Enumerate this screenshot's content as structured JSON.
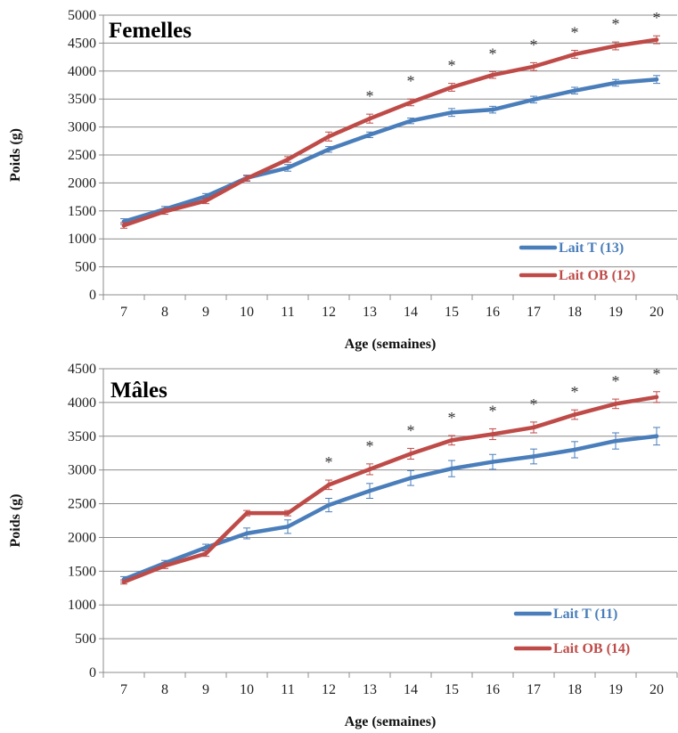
{
  "chart_data": [
    {
      "type": "line",
      "title": "Femelles",
      "xlabel": "Age (semaines)",
      "ylabel": "Poids (g)",
      "x": [
        7,
        8,
        9,
        10,
        11,
        12,
        13,
        14,
        15,
        16,
        17,
        18,
        19,
        20
      ],
      "ylim": [
        0,
        5000
      ],
      "yticks": [
        0,
        500,
        1000,
        1500,
        2000,
        2500,
        3000,
        3500,
        4000,
        4500,
        5000
      ],
      "grid": true,
      "legend": "bottom-right",
      "series": [
        {
          "name": "Lait T (13)",
          "color": "#4A7EBB",
          "values": [
            1310,
            1530,
            1760,
            2090,
            2270,
            2600,
            2860,
            3110,
            3260,
            3310,
            3490,
            3650,
            3790,
            3850
          ],
          "errors": [
            50,
            50,
            50,
            50,
            60,
            50,
            50,
            50,
            70,
            60,
            60,
            60,
            60,
            70
          ]
        },
        {
          "name": "Lait OB (12)",
          "color": "#BE4B48",
          "values": [
            1240,
            1490,
            1680,
            2080,
            2420,
            2830,
            3150,
            3440,
            3710,
            3930,
            4080,
            4300,
            4450,
            4560
          ],
          "errors": [
            50,
            50,
            50,
            50,
            50,
            80,
            80,
            60,
            70,
            60,
            70,
            70,
            70,
            70
          ]
        }
      ],
      "significant": [
        13,
        14,
        15,
        16,
        17,
        18,
        19,
        20
      ],
      "significance_label": "*"
    },
    {
      "type": "line",
      "title": "Mâles",
      "xlabel": "Age (semaines)",
      "ylabel": "Poids (g)",
      "x": [
        7,
        8,
        9,
        10,
        11,
        12,
        13,
        14,
        15,
        16,
        17,
        18,
        19,
        20
      ],
      "ylim": [
        0,
        4500
      ],
      "yticks": [
        0,
        500,
        1000,
        1500,
        2000,
        2500,
        3000,
        3500,
        4000,
        4500
      ],
      "grid": true,
      "legend": "bottom-right",
      "series": [
        {
          "name": "Lait T (11)",
          "color": "#4A7EBB",
          "values": [
            1380,
            1620,
            1850,
            2060,
            2160,
            2480,
            2690,
            2880,
            3020,
            3120,
            3200,
            3300,
            3430,
            3500
          ],
          "errors": [
            40,
            40,
            50,
            80,
            100,
            100,
            110,
            110,
            120,
            110,
            110,
            120,
            120,
            130
          ]
        },
        {
          "name": "Lait OB (14)",
          "color": "#BE4B48",
          "values": [
            1340,
            1580,
            1760,
            2360,
            2360,
            2780,
            3010,
            3240,
            3440,
            3530,
            3630,
            3820,
            3980,
            4080
          ],
          "errors": [
            30,
            40,
            40,
            40,
            40,
            70,
            80,
            80,
            70,
            80,
            80,
            70,
            70,
            80
          ]
        }
      ],
      "significant": [
        12,
        13,
        14,
        15,
        16,
        17,
        18,
        19,
        20
      ],
      "significance_label": "*"
    }
  ]
}
